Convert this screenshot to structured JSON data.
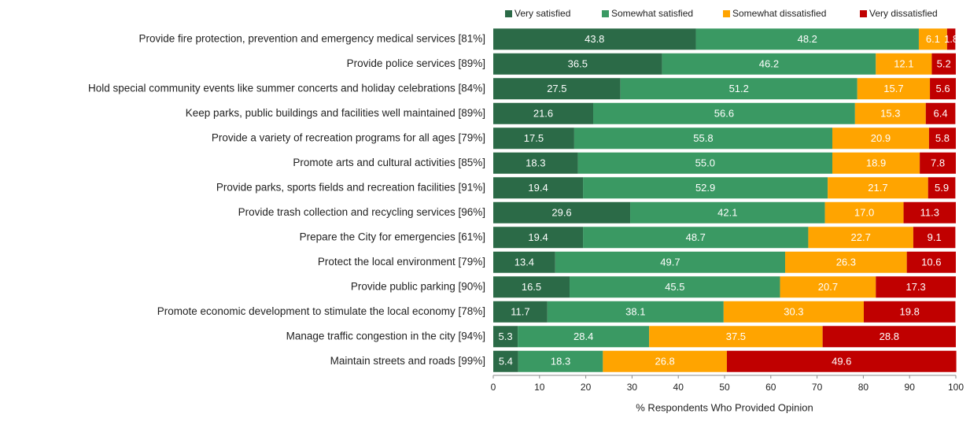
{
  "chart_data": {
    "type": "bar",
    "orientation": "horizontal",
    "stacked": true,
    "xlabel": "% Respondents Who Provided Opinion",
    "categories": [
      "Provide fire protection, prevention and emergency medical services [81%]",
      "Provide police services [89%]",
      "Hold special community events like summer concerts and holiday celebrations [84%]",
      "Keep parks, public buildings and facilities well maintained [89%]",
      "Provide a variety of recreation programs for all ages [79%]",
      "Promote arts and cultural activities [85%]",
      "Provide parks, sports fields and recreation facilities [91%]",
      "Provide trash collection and recycling services [96%]",
      "Prepare the City for emergencies [61%]",
      "Protect the local environment [79%]",
      "Provide public parking [90%]",
      "Promote economic development to stimulate the local economy [78%]",
      "Manage traffic congestion in the city [94%]",
      "Maintain streets and roads [99%]"
    ],
    "series": [
      {
        "name": "Very satisfied",
        "color": "#2b6a47",
        "values": [
          43.8,
          36.5,
          27.5,
          21.6,
          17.5,
          18.3,
          19.4,
          29.6,
          19.4,
          13.4,
          16.5,
          11.7,
          5.3,
          5.4
        ],
        "value_labels": [
          "43.8",
          "36.5",
          "27.5",
          "21.6",
          "17.5",
          "18.3",
          "19.4",
          "29.6",
          "19.4",
          "13.4",
          "16.5",
          "11.7",
          "5.3",
          "5.4"
        ]
      },
      {
        "name": "Somewhat satisfied",
        "color": "#3a9963",
        "values": [
          48.2,
          46.2,
          51.2,
          56.6,
          55.8,
          55.0,
          52.9,
          42.1,
          48.7,
          49.7,
          45.5,
          38.1,
          28.4,
          18.3
        ],
        "value_labels": [
          "48.2",
          "46.2",
          "51.2",
          "56.6",
          "55.8",
          "55.0",
          "52.9",
          "42.1",
          "48.7",
          "49.7",
          "45.5",
          "38.1",
          "28.4",
          "18.3"
        ]
      },
      {
        "name": "Somewhat dissatisfied",
        "color": "#ffa400",
        "values": [
          6.1,
          12.1,
          15.7,
          15.3,
          20.9,
          18.9,
          21.7,
          17.0,
          22.7,
          26.3,
          20.7,
          30.3,
          37.5,
          26.8
        ],
        "value_labels": [
          "6.1",
          "12.1",
          "15.7",
          "15.3",
          "20.9",
          "18.9",
          "21.7",
          "17.0",
          "22.7",
          "26.3",
          "20.7",
          "30.3",
          "37.5",
          "26.8"
        ]
      },
      {
        "name": "Very dissatisfied",
        "color": "#c00000",
        "values": [
          1.8,
          5.2,
          5.6,
          6.4,
          5.8,
          7.8,
          5.9,
          11.3,
          9.1,
          10.6,
          17.3,
          19.8,
          28.8,
          49.6
        ],
        "value_labels": [
          "1.8",
          "5.2",
          "5.6",
          "6.4",
          "5.8",
          "7.8",
          "5.9",
          "11.3",
          "9.1",
          "10.6",
          "17.3",
          "19.8",
          "28.8",
          "49.6"
        ]
      }
    ],
    "xlim": [
      0,
      100
    ],
    "xticks": [
      0,
      10,
      20,
      30,
      40,
      50,
      60,
      70,
      80,
      90,
      100
    ],
    "grid": false,
    "legend": "top"
  }
}
